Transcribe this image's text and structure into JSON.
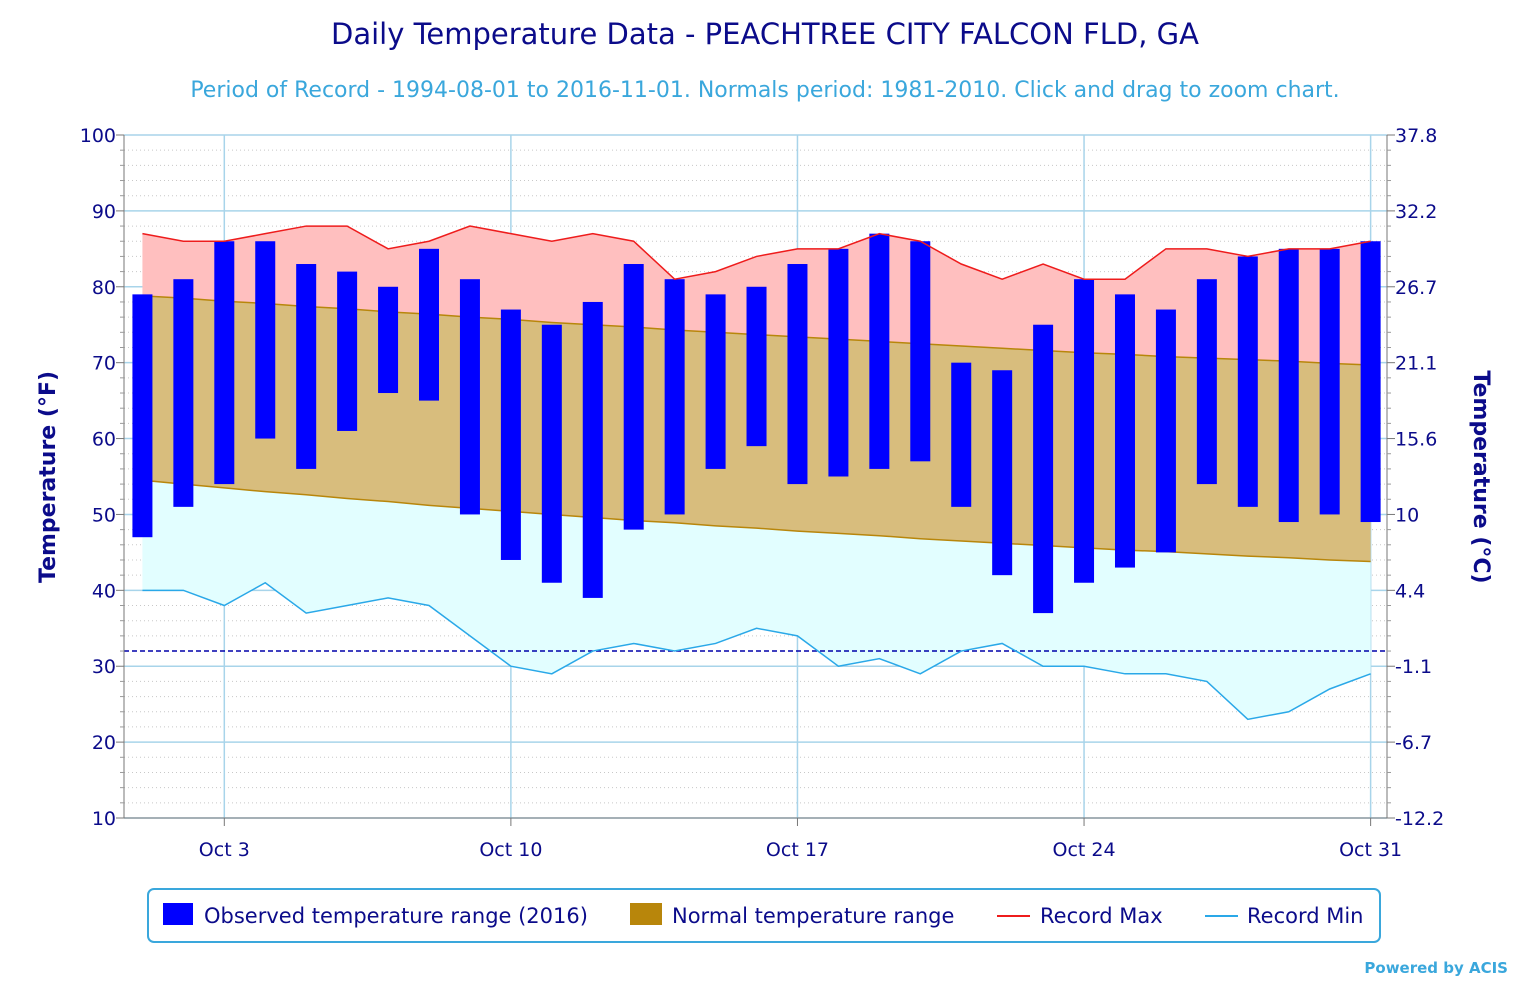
{
  "colors": {
    "observed": "#0000ff",
    "normal": "#b8860b",
    "normal_fill": "#d8bd7d",
    "record_max": "#ee1c1c",
    "record_max_fill": "#ffbfbf",
    "record_min": "#2aa8e8",
    "record_min_fill": "#e2feff",
    "freezing_line": "#0000aa",
    "text": "#0b0b8a",
    "subtitle": "#3aa7dc",
    "grid": "#a8d4ea"
  },
  "credit": "Powered by ACIS",
  "chart_data": {
    "type": "bar",
    "title": "Daily Temperature Data - PEACHTREE CITY FALCON FLD, GA",
    "subtitle": "Period of Record - 1994-08-01 to 2016-11-01. Normals period: 1981-2010. Click and drag to zoom chart.",
    "ylabel": "Temperature (°F)",
    "ylabel_right": "Temperature (°C)",
    "ylim": [
      10,
      100
    ],
    "yticks": [
      "10",
      "20",
      "30",
      "40",
      "50",
      "60",
      "70",
      "80",
      "90",
      "100"
    ],
    "yticks_right": [
      "-12.2",
      "-6.7",
      "-1.1",
      "4.4",
      "10",
      "15.6",
      "21.1",
      "26.7",
      "32.2",
      "37.8"
    ],
    "x": [
      1,
      2,
      3,
      4,
      5,
      6,
      7,
      8,
      9,
      10,
      11,
      12,
      13,
      14,
      15,
      16,
      17,
      18,
      19,
      20,
      21,
      22,
      23,
      24,
      25,
      26,
      27,
      28,
      29,
      30,
      31
    ],
    "xlim": [
      0.55,
      31.4
    ],
    "xticks": [
      {
        "x": 3,
        "label": "Oct 3"
      },
      {
        "x": 10,
        "label": "Oct 10"
      },
      {
        "x": 17,
        "label": "Oct 17"
      },
      {
        "x": 24,
        "label": "Oct 24"
      },
      {
        "x": 31,
        "label": "Oct 31"
      }
    ],
    "freezing": 32,
    "grid": true,
    "legend_position": "bottom",
    "series": [
      {
        "name": "Observed temperature range (2016)",
        "type": "columnrange",
        "low": [
          47,
          51,
          54,
          60,
          56,
          61,
          66,
          65,
          50,
          44,
          41,
          39,
          48,
          50,
          56,
          59,
          54,
          55,
          56,
          57,
          51,
          42,
          37,
          41,
          43,
          45,
          54,
          51,
          49,
          50,
          49
        ],
        "high": [
          79,
          81,
          86,
          86,
          83,
          82,
          80,
          85,
          81,
          77,
          75,
          78,
          83,
          81,
          79,
          80,
          83,
          85,
          87,
          86,
          70,
          69,
          75,
          81,
          79,
          77,
          81,
          84,
          85,
          85,
          86
        ]
      },
      {
        "name": "Normal temperature range",
        "type": "arearange",
        "low": [
          54.5,
          54,
          53.5,
          53,
          52.6,
          52.1,
          51.7,
          51.2,
          50.8,
          50.4,
          50,
          49.6,
          49.2,
          48.9,
          48.5,
          48.2,
          47.8,
          47.5,
          47.2,
          46.8,
          46.5,
          46.2,
          45.9,
          45.6,
          45.3,
          45.1,
          44.8,
          44.5,
          44.3,
          44.0,
          43.8
        ],
        "high": [
          78.8,
          78.5,
          78.1,
          77.8,
          77.4,
          77.1,
          76.7,
          76.4,
          76.0,
          75.7,
          75.3,
          75.0,
          74.7,
          74.3,
          74.0,
          73.7,
          73.4,
          73.1,
          72.8,
          72.5,
          72.2,
          71.9,
          71.6,
          71.3,
          71.1,
          70.8,
          70.6,
          70.4,
          70.2,
          69.9,
          69.7
        ]
      },
      {
        "name": "Record Max",
        "type": "line",
        "values": [
          87,
          86,
          86,
          87,
          88,
          88,
          85,
          86,
          88,
          87,
          86,
          87,
          86,
          81,
          82,
          84,
          85,
          85,
          87,
          86,
          83,
          81,
          83,
          81,
          81,
          85,
          85,
          84,
          85,
          85,
          86
        ]
      },
      {
        "name": "Record Min",
        "type": "line",
        "values": [
          40,
          40,
          38,
          41,
          37,
          38,
          39,
          38,
          34,
          30,
          29,
          32,
          33,
          32,
          33,
          35,
          34,
          30,
          31,
          29,
          32,
          33,
          30,
          30,
          29,
          29,
          28,
          23,
          24,
          27,
          29
        ]
      }
    ]
  }
}
